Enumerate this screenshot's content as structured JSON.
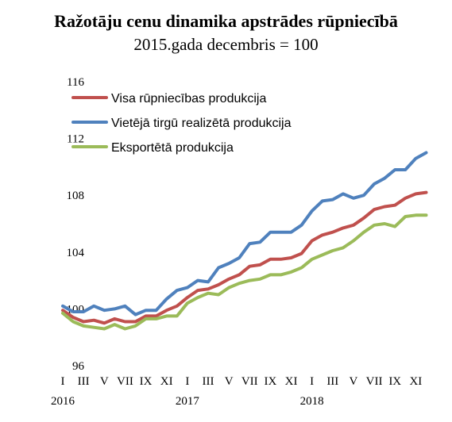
{
  "chart_data": {
    "type": "line",
    "title": "Ražotāju cenu dinamika apstrādes rūpniecībā",
    "subtitle": "2015.gada decembris = 100",
    "xlabel": "",
    "ylabel": "",
    "ylim": [
      96,
      116
    ],
    "yticks": [
      "96",
      "100",
      "104",
      "108",
      "112",
      "116"
    ],
    "x_month_labels": [
      "I",
      "III",
      "V",
      "VII",
      "IX",
      "XI",
      "I",
      "III",
      "V",
      "VII",
      "IX",
      "XI",
      "I",
      "III",
      "V",
      "VII",
      "IX",
      "XI"
    ],
    "x_year_labels": [
      "2016",
      "2017",
      "2018"
    ],
    "legend_position": "top-left",
    "series": [
      {
        "name": "Visa rūpniecības produkcija",
        "color": "#c0504d",
        "values": [
          99.9,
          99.4,
          99.1,
          99.2,
          99.0,
          99.3,
          99.1,
          99.1,
          99.5,
          99.5,
          99.9,
          100.2,
          100.8,
          101.3,
          101.4,
          101.7,
          102.1,
          102.4,
          103.0,
          103.1,
          103.5,
          103.5,
          103.6,
          103.9,
          104.8,
          105.2,
          105.4,
          105.7,
          105.9,
          106.4,
          107.0,
          107.2,
          107.3,
          107.8,
          108.1,
          108.2
        ]
      },
      {
        "name": "Vietējā tirgū realizētā produkcija",
        "color": "#4f81bd",
        "values": [
          100.2,
          99.8,
          99.8,
          100.2,
          99.9,
          100.0,
          100.2,
          99.6,
          99.9,
          99.9,
          100.7,
          101.3,
          101.5,
          102.0,
          101.9,
          102.9,
          103.2,
          103.6,
          104.6,
          104.7,
          105.4,
          105.4,
          105.4,
          105.9,
          106.9,
          107.6,
          107.7,
          108.1,
          107.8,
          108.0,
          108.8,
          109.2,
          109.8,
          109.8,
          110.6,
          111.0
        ]
      },
      {
        "name": "Eksportētā produkcija",
        "color": "#9bbb59",
        "values": [
          99.7,
          99.1,
          98.8,
          98.7,
          98.6,
          98.9,
          98.6,
          98.8,
          99.3,
          99.3,
          99.5,
          99.5,
          100.4,
          100.8,
          101.1,
          101.0,
          101.5,
          101.8,
          102.0,
          102.1,
          102.4,
          102.4,
          102.6,
          102.9,
          103.5,
          103.8,
          104.1,
          104.3,
          104.8,
          105.4,
          105.9,
          106.0,
          105.8,
          106.5,
          106.6,
          106.6
        ]
      }
    ]
  }
}
